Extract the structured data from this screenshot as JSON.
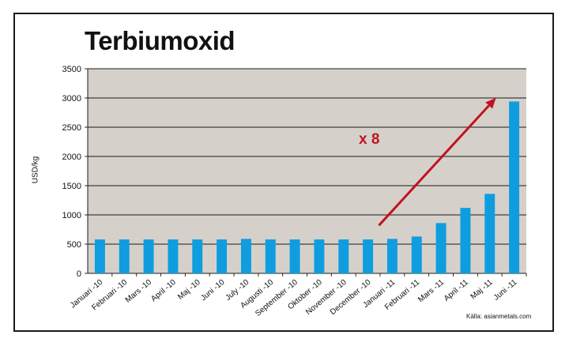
{
  "chart_data": {
    "type": "bar",
    "title": "Terbiumoxid",
    "ylabel": "USD/kg",
    "xlabel": "",
    "ylim": [
      0,
      3500
    ],
    "yticks": [
      0,
      500,
      1000,
      1500,
      2000,
      2500,
      3000,
      3500
    ],
    "grid": true,
    "categories": [
      "Januari -10",
      "Februari -10",
      "Mars -10",
      "April -10",
      "Maj -10",
      "Juni -10",
      "July -10",
      "Augusti -10",
      "September -10",
      "Oktober -10",
      "November -10",
      "December -10",
      "Januari -11",
      "Februari -11",
      "Mars -11",
      "April -11",
      "Maj -11",
      "Juni -11"
    ],
    "values": [
      580,
      580,
      580,
      580,
      580,
      580,
      590,
      580,
      580,
      580,
      580,
      580,
      590,
      630,
      860,
      1120,
      1360,
      2940
    ],
    "annotation": "x 8",
    "source": "Källa: asianmetals.com"
  },
  "colors": {
    "plot_background": "#d5d1ca",
    "bar": "#0f9de0",
    "arrow": "#c0141e",
    "grid": "#1a1a1a"
  }
}
